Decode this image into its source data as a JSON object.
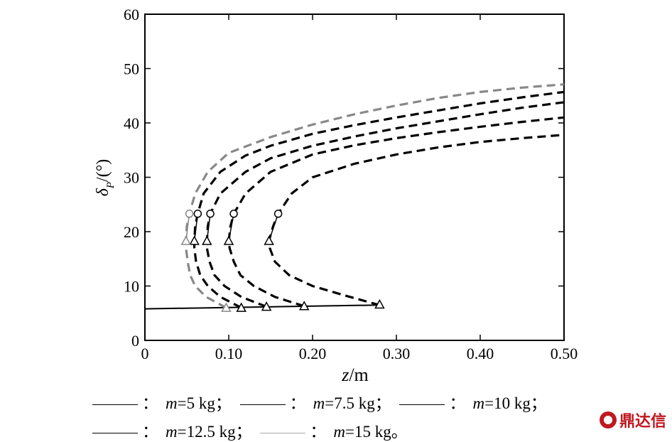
{
  "chart_data": {
    "type": "line",
    "ylabel": "δP/(°)",
    "xlabel_italic": "z",
    "xlabel_unit": "/m",
    "xlim": [
      0,
      0.5
    ],
    "ylim": [
      0,
      60
    ],
    "x_ticks": [
      "0",
      "0.10",
      "0.20",
      "0.30",
      "0.40",
      "0.50"
    ],
    "y_ticks": [
      "0",
      "10",
      "20",
      "30",
      "40",
      "50",
      "60"
    ],
    "grid": false,
    "baseline_line": {
      "x": [
        0,
        0.28
      ],
      "y": [
        5.8,
        6.5
      ]
    },
    "series": [
      {
        "name": "m=5 kg",
        "color": "#000000",
        "x": [
          0.28,
          0.24,
          0.2,
          0.172,
          0.155,
          0.149,
          0.148,
          0.153,
          0.159,
          0.175,
          0.2,
          0.25,
          0.3,
          0.35,
          0.4,
          0.45,
          0.5
        ],
        "y": [
          6.5,
          8.2,
          10,
          12,
          14.5,
          17,
          18.3,
          21,
          23.3,
          27,
          30,
          32.5,
          34.2,
          35.5,
          36.5,
          37.2,
          37.8
        ],
        "circle": [
          0.159,
          23.3
        ],
        "triangle_top": [
          0.148,
          18.3
        ],
        "triangle_bottom": [
          0.28,
          6.6
        ]
      },
      {
        "name": "m=7.5 kg",
        "color": "#000000",
        "x": [
          0.19,
          0.155,
          0.13,
          0.114,
          0.106,
          0.101,
          0.1,
          0.102,
          0.106,
          0.12,
          0.15,
          0.2,
          0.25,
          0.3,
          0.35,
          0.4,
          0.45,
          0.5
        ],
        "y": [
          6.3,
          8,
          10,
          12,
          14.5,
          17,
          18.3,
          21,
          23.3,
          27,
          31,
          34.2,
          35.9,
          37.2,
          38.3,
          39.3,
          40.2,
          41
        ],
        "circle": [
          0.106,
          23.3
        ],
        "triangle_top": [
          0.1,
          18.3
        ],
        "triangle_bottom": [
          0.19,
          6.3
        ]
      },
      {
        "name": "m=10 kg",
        "color": "#000000",
        "x": [
          0.145,
          0.115,
          0.095,
          0.083,
          0.077,
          0.074,
          0.074,
          0.075,
          0.078,
          0.09,
          0.12,
          0.15,
          0.2,
          0.25,
          0.3,
          0.35,
          0.4,
          0.45,
          0.5
        ],
        "y": [
          6.2,
          8,
          10,
          12,
          14.5,
          17,
          18.3,
          21,
          23.3,
          27,
          31,
          33.5,
          35.8,
          37.5,
          39,
          40.3,
          41.6,
          42.8,
          43.8
        ],
        "circle": [
          0.078,
          23.3
        ],
        "triangle_top": [
          0.074,
          18.3
        ],
        "triangle_bottom": [
          0.145,
          6.2
        ]
      },
      {
        "name": "m=12.5 kg",
        "color": "#000000",
        "x": [
          0.115,
          0.09,
          0.075,
          0.066,
          0.061,
          0.059,
          0.059,
          0.06,
          0.063,
          0.07,
          0.09,
          0.12,
          0.15,
          0.2,
          0.25,
          0.3,
          0.35,
          0.4,
          0.45,
          0.5
        ],
        "y": [
          6,
          8,
          10,
          12,
          14.5,
          17,
          18.3,
          21,
          23.3,
          27,
          31,
          34,
          35.8,
          38,
          39.6,
          41,
          42.3,
          43.6,
          44.7,
          45.7
        ],
        "circle": [
          0.063,
          23.3
        ],
        "triangle_top": [
          0.059,
          18.3
        ],
        "triangle_bottom": [
          0.115,
          6.0
        ]
      },
      {
        "name": "m=15 kg",
        "color": "#888888",
        "x": [
          0.097,
          0.073,
          0.06,
          0.054,
          0.051,
          0.049,
          0.049,
          0.05,
          0.053,
          0.06,
          0.075,
          0.1,
          0.15,
          0.2,
          0.25,
          0.3,
          0.35,
          0.4,
          0.45,
          0.5
        ],
        "y": [
          6.0,
          8,
          10,
          12,
          14.5,
          17,
          18.3,
          21,
          23.3,
          27,
          31,
          34.5,
          37.4,
          39.7,
          41.6,
          43.2,
          44.6,
          45.7,
          46.5,
          47.1
        ],
        "circle": [
          0.053,
          23.3
        ],
        "triangle_top": [
          0.049,
          18.3
        ],
        "triangle_bottom": [
          0.097,
          6.0
        ]
      }
    ]
  },
  "legend": {
    "items": [
      {
        "sep": "：",
        "m": "m",
        "rest": "=5 kg；",
        "color": "#000000"
      },
      {
        "sep": "：",
        "m": "m",
        "rest": "=7.5 kg；",
        "color": "#000000"
      },
      {
        "sep": "：",
        "m": "m",
        "rest": "=10 kg；",
        "color": "#000000"
      },
      {
        "sep": "：",
        "m": "m",
        "rest": "=12.5 kg；",
        "color": "#000000"
      },
      {
        "sep": "：",
        "m": "m",
        "rest": "=15 kg。",
        "color": "#aaaaaa"
      }
    ]
  },
  "watermark": {
    "text": "鼎达信"
  }
}
